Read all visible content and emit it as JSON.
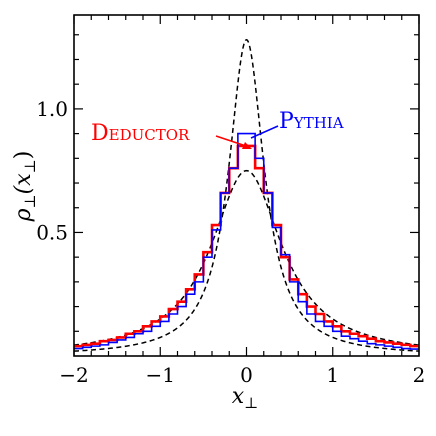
{
  "chart_data": {
    "type": "line",
    "xlabel": "x",
    "xlabel_sub": "⊥",
    "ylabel_main": "ρ",
    "ylabel_sub": "⊥",
    "ylabel_arg": "(x",
    "ylabel_arg_sub": "⊥",
    "ylabel_close": ")",
    "xlim": [
      -2,
      2
    ],
    "ylim": [
      0,
      1.38
    ],
    "x_ticks": [
      -2,
      -1,
      0,
      1,
      2
    ],
    "x_tick_labels": [
      "−2",
      "−1",
      "0",
      "1",
      "2"
    ],
    "y_ticks": [
      0.5,
      1.0
    ],
    "y_tick_labels": [
      "0.5",
      "1.0"
    ],
    "grid": false,
    "bin_edges": [
      -2.0,
      -1.9,
      -1.8,
      -1.7,
      -1.6,
      -1.5,
      -1.4,
      -1.3,
      -1.2,
      -1.1,
      -1.0,
      -0.9,
      -0.8,
      -0.7,
      -0.6,
      -0.5,
      -0.4,
      -0.3,
      -0.2,
      -0.1,
      0.0,
      0.1,
      0.2,
      0.3,
      0.4,
      0.5,
      0.6,
      0.7,
      0.8,
      0.9,
      1.0,
      1.1,
      1.2,
      1.3,
      1.4,
      1.5,
      1.6,
      1.7,
      1.8,
      1.9,
      2.0
    ],
    "series": [
      {
        "name": "Deductor",
        "color": "#ff0000",
        "style": "step",
        "values": [
          0.04,
          0.045,
          0.05,
          0.06,
          0.065,
          0.075,
          0.09,
          0.1,
          0.12,
          0.14,
          0.16,
          0.19,
          0.22,
          0.27,
          0.33,
          0.42,
          0.53,
          0.66,
          0.76,
          0.85,
          0.85,
          0.76,
          0.66,
          0.53,
          0.4,
          0.31,
          0.25,
          0.2,
          0.17,
          0.14,
          0.12,
          0.1,
          0.09,
          0.08,
          0.07,
          0.06,
          0.055,
          0.05,
          0.045,
          0.04
        ]
      },
      {
        "name": "Pythia",
        "color": "#0000ff",
        "style": "step",
        "values": [
          0.03,
          0.035,
          0.04,
          0.045,
          0.055,
          0.065,
          0.075,
          0.09,
          0.1,
          0.12,
          0.14,
          0.17,
          0.2,
          0.25,
          0.3,
          0.4,
          0.51,
          0.66,
          0.76,
          0.9,
          0.9,
          0.8,
          0.66,
          0.52,
          0.41,
          0.3,
          0.22,
          0.17,
          0.14,
          0.12,
          0.1,
          0.08,
          0.07,
          0.06,
          0.05,
          0.045,
          0.04,
          0.035,
          0.03,
          0.028
        ]
      },
      {
        "name": "",
        "color": "#000000",
        "style": "dashed",
        "curve": "lorentzian",
        "peak": 1.28,
        "half_width": 0.25
      },
      {
        "name": "",
        "color": "#000000",
        "style": "dashed",
        "curve": "lorentzian",
        "peak": 0.75,
        "half_width": 0.5
      }
    ],
    "annotations": [
      {
        "text": "Deductor",
        "color": "#ff0000",
        "points_to": [
          -0.02,
          0.85
        ]
      },
      {
        "text": "Pythia",
        "color": "#0000ff",
        "points_to": [
          0.02,
          0.9
        ]
      }
    ]
  }
}
